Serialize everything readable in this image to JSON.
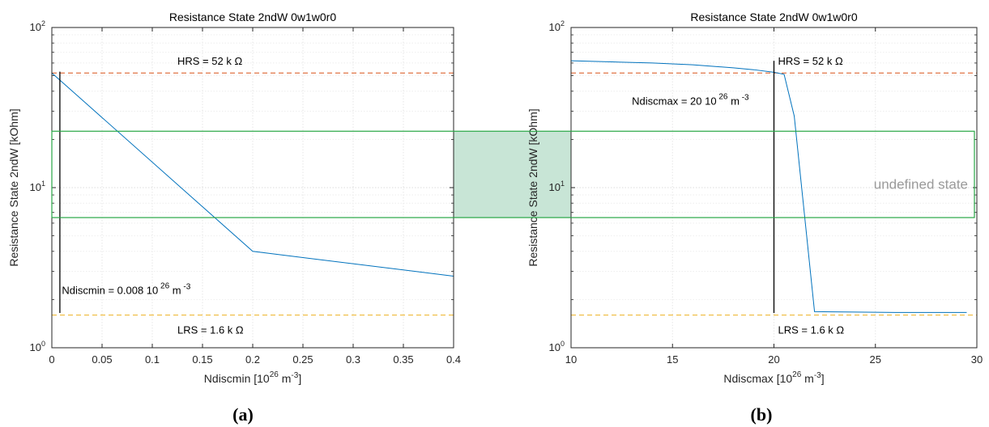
{
  "chart_data": [
    {
      "type": "line",
      "title": "Resistance State 2ndW 0w1w0r0",
      "xlabel_main": "Ndiscmin [10",
      "xlabel_exp": "26",
      "xlabel_unit": "m",
      "xlabel_unit_exp": "-3",
      "xlabel_close": "]",
      "ylabel": "Resistance State 2ndW [kOhm]",
      "panel_label": "(a)",
      "xlim": [
        0,
        0.4
      ],
      "ylim": [
        1,
        100
      ],
      "yscale": "log",
      "grid": true,
      "x_ticks": [
        0,
        0.05,
        0.1,
        0.15,
        0.2,
        0.25,
        0.3,
        0.35,
        0.4
      ],
      "x_tick_labels": [
        "0",
        "0.05",
        "0.1",
        "0.15",
        "0.2",
        "0.25",
        "0.3",
        "0.35",
        "0.4"
      ],
      "y_ticks": [
        1,
        10,
        100
      ],
      "series": [
        {
          "x": [
            0,
            0.2,
            0.4
          ],
          "y": [
            52,
            4.0,
            2.8
          ],
          "color": "#0072bd"
        }
      ],
      "hlines": [
        {
          "y": 52,
          "color": "#d95319",
          "label": "HRS = 52 k  Ω",
          "label_x": 0.125,
          "label_y": 62
        },
        {
          "y": 1.6,
          "color": "#edb120",
          "label": "LRS = 1.6 k  Ω",
          "label_x": 0.125,
          "label_y": 1.3
        }
      ],
      "vline": {
        "x": 0.008,
        "y_from": 1.65,
        "y_to": 53,
        "color": "#000000"
      },
      "annotation": {
        "main": "Ndiscmin = 0.008 10",
        "exp": "26",
        "unit": "m",
        "unit_exp": "-3",
        "x": 0.01,
        "y": 2.3
      }
    },
    {
      "type": "line",
      "title": "Resistance State 2ndW 0w1w0r0",
      "xlabel_main": "Ndiscmax [10",
      "xlabel_exp": "26",
      "xlabel_unit": "m",
      "xlabel_unit_exp": "-3",
      "xlabel_close": "]",
      "ylabel": "Resistance State 2ndW [kOhm]",
      "panel_label": "(b)",
      "xlim": [
        10,
        30
      ],
      "ylim": [
        1,
        100
      ],
      "yscale": "log",
      "grid": true,
      "x_ticks": [
        10,
        15,
        20,
        25,
        30
      ],
      "x_tick_labels": [
        "10",
        "15",
        "20",
        "25",
        "30"
      ],
      "y_ticks": [
        1,
        10,
        100
      ],
      "series": [
        {
          "x": [
            10,
            12,
            14,
            16,
            18,
            19,
            20,
            20.5,
            21,
            22,
            24,
            26,
            28,
            29.5
          ],
          "y": [
            62,
            61,
            60,
            58.5,
            56,
            54.5,
            52.5,
            51,
            28,
            1.68,
            1.67,
            1.66,
            1.66,
            1.66
          ],
          "color": "#0072bd"
        }
      ],
      "hlines": [
        {
          "y": 52,
          "color": "#d95319",
          "label": "HRS = 52 k  Ω",
          "label_x": 20.2,
          "label_y": 62
        },
        {
          "y": 1.6,
          "color": "#edb120",
          "label": "LRS = 1.6 k  Ω",
          "label_x": 20.2,
          "label_y": 1.3
        }
      ],
      "vline": {
        "x": 20,
        "y_from": 1.65,
        "y_to": 62,
        "color": "#000000"
      },
      "annotation": {
        "main": "Ndiscmax = 20 10",
        "exp": "26",
        "unit": "m",
        "unit_exp": "-3",
        "x": 13,
        "y": 35
      }
    }
  ],
  "undefined_band": {
    "y_low": 6.5,
    "y_high": 22.5,
    "label": "undefined state",
    "fill": "#a3d3bb",
    "stroke": "#28a745"
  }
}
